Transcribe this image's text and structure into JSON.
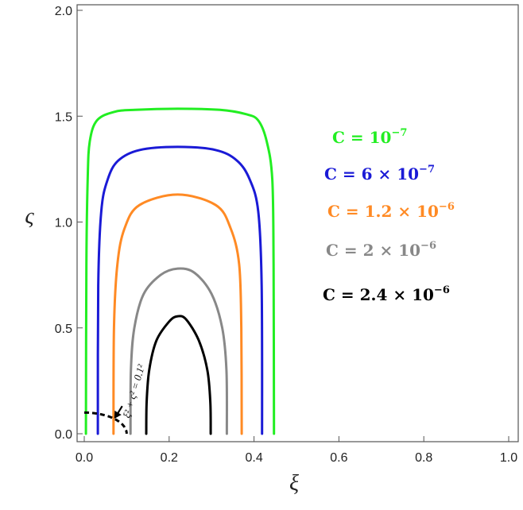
{
  "chart_data": {
    "type": "line",
    "xlabel": "ξ",
    "ylabel": "ς",
    "xlim": [
      0.0,
      1.0
    ],
    "ylim": [
      0.0,
      2.0
    ],
    "x_ticks": [
      "0.0",
      "0.2",
      "0.4",
      "0.6",
      "0.8",
      "1.0"
    ],
    "y_ticks": [
      "0.0",
      "0.5",
      "1.0",
      "1.5",
      "2.0"
    ],
    "grid": false,
    "legend_position": "right",
    "series": [
      {
        "name": "C = 10⁻⁷",
        "base": "C = 10",
        "exp": "−7",
        "color": "#22ee22",
        "points": [
          [
            0.004,
            0.0
          ],
          [
            0.005,
            0.8
          ],
          [
            0.008,
            1.2
          ],
          [
            0.013,
            1.38
          ],
          [
            0.03,
            1.48
          ],
          [
            0.07,
            1.52
          ],
          [
            0.12,
            1.53
          ],
          [
            0.22,
            1.535
          ],
          [
            0.32,
            1.53
          ],
          [
            0.38,
            1.51
          ],
          [
            0.41,
            1.48
          ],
          [
            0.43,
            1.38
          ],
          [
            0.443,
            1.2
          ],
          [
            0.446,
            0.8
          ],
          [
            0.447,
            0.0
          ]
        ]
      },
      {
        "name": "C = 6 × 10⁻⁷",
        "base": "C = 6 × 10",
        "exp": "−7",
        "color": "#1a1ad6",
        "points": [
          [
            0.032,
            0.0
          ],
          [
            0.033,
            0.7
          ],
          [
            0.04,
            1.05
          ],
          [
            0.055,
            1.2
          ],
          [
            0.08,
            1.29
          ],
          [
            0.13,
            1.34
          ],
          [
            0.22,
            1.355
          ],
          [
            0.31,
            1.34
          ],
          [
            0.36,
            1.29
          ],
          [
            0.39,
            1.2
          ],
          [
            0.41,
            1.05
          ],
          [
            0.418,
            0.7
          ],
          [
            0.419,
            0.0
          ]
        ]
      },
      {
        "name": "C = 1.2 × 10⁻⁶",
        "base": "C = 1.2 × 10",
        "exp": "−6",
        "color": "#ff8a24",
        "points": [
          [
            0.069,
            0.0
          ],
          [
            0.07,
            0.5
          ],
          [
            0.078,
            0.8
          ],
          [
            0.095,
            0.97
          ],
          [
            0.13,
            1.08
          ],
          [
            0.22,
            1.13
          ],
          [
            0.31,
            1.08
          ],
          [
            0.345,
            0.97
          ],
          [
            0.365,
            0.8
          ],
          [
            0.37,
            0.5
          ],
          [
            0.371,
            0.0
          ]
        ]
      },
      {
        "name": "C = 2 × 10⁻⁶",
        "base": "C = 2 × 10",
        "exp": "−6",
        "color": "#888888",
        "points": [
          [
            0.109,
            0.0
          ],
          [
            0.11,
            0.3
          ],
          [
            0.118,
            0.5
          ],
          [
            0.14,
            0.66
          ],
          [
            0.18,
            0.75
          ],
          [
            0.22,
            0.78
          ],
          [
            0.26,
            0.76
          ],
          [
            0.3,
            0.66
          ],
          [
            0.325,
            0.5
          ],
          [
            0.335,
            0.3
          ],
          [
            0.336,
            0.0
          ]
        ]
      },
      {
        "name": "C = 2.4 × 10⁻⁶",
        "base": "C = 2.4 × 10",
        "exp": "−6",
        "color": "#000000",
        "points": [
          [
            0.146,
            0.0
          ],
          [
            0.147,
            0.15
          ],
          [
            0.153,
            0.3
          ],
          [
            0.17,
            0.44
          ],
          [
            0.2,
            0.53
          ],
          [
            0.22,
            0.555
          ],
          [
            0.24,
            0.54
          ],
          [
            0.27,
            0.44
          ],
          [
            0.29,
            0.3
          ],
          [
            0.297,
            0.15
          ],
          [
            0.298,
            0.0
          ]
        ]
      }
    ],
    "reference_curve": {
      "label": "ξ² + ς² = 0.1²",
      "style": "dashed",
      "color": "#000000",
      "radius": 0.1
    }
  }
}
